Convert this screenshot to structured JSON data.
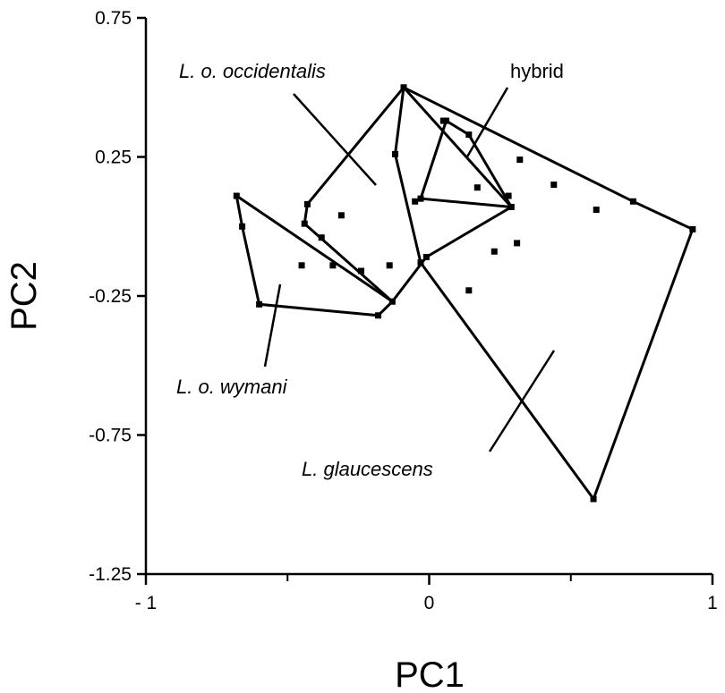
{
  "chart_data": {
    "type": "scatter",
    "xlabel": "PC1",
    "ylabel": "PC2",
    "xlim": [
      -1,
      1
    ],
    "ylim": [
      -1.25,
      0.75
    ],
    "x_ticks": [
      {
        "value": -1,
        "label": "- 1"
      },
      {
        "value": 0,
        "label": "0"
      },
      {
        "value": 1,
        "label": "1"
      }
    ],
    "y_ticks": [
      {
        "value": 0.75,
        "label": "0.75"
      },
      {
        "value": 0.25,
        "label": "0.25"
      },
      {
        "value": -0.25,
        "label": "-0.25"
      },
      {
        "value": -0.75,
        "label": "-0.75"
      },
      {
        "value": -1.25,
        "label": "-1.25"
      }
    ],
    "grid": false,
    "points": [
      [
        -0.68,
        0.11
      ],
      [
        -0.66,
        0.0
      ],
      [
        -0.6,
        -0.28
      ],
      [
        -0.43,
        0.08
      ],
      [
        -0.44,
        0.01
      ],
      [
        -0.38,
        -0.04
      ],
      [
        -0.31,
        0.04
      ],
      [
        -0.45,
        -0.14
      ],
      [
        -0.34,
        -0.14
      ],
      [
        -0.24,
        -0.16
      ],
      [
        -0.18,
        -0.32
      ],
      [
        -0.14,
        -0.14
      ],
      [
        -0.13,
        -0.27
      ],
      [
        -0.09,
        0.5
      ],
      [
        -0.12,
        0.26
      ],
      [
        -0.05,
        0.09
      ],
      [
        -0.03,
        0.1
      ],
      [
        -0.03,
        -0.13
      ],
      [
        -0.01,
        -0.11
      ],
      [
        0.05,
        0.38
      ],
      [
        0.06,
        0.38
      ],
      [
        0.14,
        0.33
      ],
      [
        0.14,
        -0.23
      ],
      [
        0.17,
        0.14
      ],
      [
        0.23,
        -0.09
      ],
      [
        0.28,
        0.11
      ],
      [
        0.29,
        0.07
      ],
      [
        0.31,
        -0.06
      ],
      [
        0.32,
        0.24
      ],
      [
        0.44,
        0.15
      ],
      [
        0.59,
        0.06
      ],
      [
        0.72,
        0.09
      ],
      [
        0.93,
        -0.01
      ],
      [
        0.58,
        -0.98
      ]
    ],
    "series": [
      {
        "name": "L. o. occidentalis",
        "hull": [
          [
            -0.09,
            0.5
          ],
          [
            0.29,
            0.07
          ],
          [
            -0.01,
            -0.11
          ],
          [
            -0.13,
            -0.27
          ],
          [
            -0.44,
            0.01
          ],
          [
            -0.43,
            0.08
          ],
          [
            -0.09,
            0.5
          ]
        ]
      },
      {
        "name": "hybrid",
        "hull": [
          [
            0.06,
            0.38
          ],
          [
            0.14,
            0.33
          ],
          [
            0.29,
            0.07
          ],
          [
            -0.03,
            0.1
          ],
          [
            0.06,
            0.38
          ]
        ]
      },
      {
        "name": "L. o. wymani",
        "hull": [
          [
            -0.68,
            0.11
          ],
          [
            -0.13,
            -0.27
          ],
          [
            -0.18,
            -0.32
          ],
          [
            -0.6,
            -0.28
          ],
          [
            -0.66,
            0.0
          ],
          [
            -0.68,
            0.11
          ]
        ]
      },
      {
        "name": "L. glaucescens",
        "hull": [
          [
            -0.09,
            0.5
          ],
          [
            0.72,
            0.09
          ],
          [
            0.93,
            -0.01
          ],
          [
            0.58,
            -0.98
          ],
          [
            -0.03,
            -0.13
          ],
          [
            -0.12,
            0.26
          ],
          [
            -0.09,
            0.5
          ]
        ]
      }
    ],
    "annotations": [
      {
        "text": "L. o. occidentalis",
        "italic": true
      },
      {
        "text": "hybrid",
        "italic": false
      },
      {
        "text": "L. o. wymani",
        "italic": true
      },
      {
        "text": "L. glaucescens",
        "italic": true
      }
    ]
  }
}
